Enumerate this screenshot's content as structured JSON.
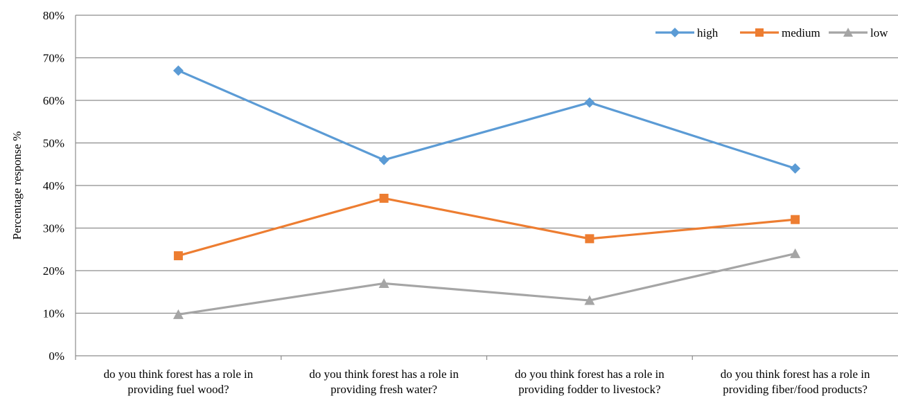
{
  "chart_data": {
    "type": "line",
    "title": "",
    "xlabel": "",
    "ylabel": "Percentage response %",
    "ylim": [
      0,
      80
    ],
    "yticks": [
      "0%",
      "10%",
      "20%",
      "30%",
      "40%",
      "50%",
      "60%",
      "70%",
      "80%"
    ],
    "grid": true,
    "legend_position": "top-right",
    "categories": [
      [
        "do you think forest has a role in",
        "providing fuel wood?"
      ],
      [
        "do you think forest has a role in",
        "providing fresh water?"
      ],
      [
        "do you think forest has a role in",
        "providing fodder to livestock?"
      ],
      [
        "do you think forest has a role in",
        "providing fiber/food products?"
      ]
    ],
    "series": [
      {
        "name": "high",
        "values": [
          67,
          46,
          59.5,
          44
        ],
        "color": "#5b9bd5",
        "marker": "diamond"
      },
      {
        "name": "medium",
        "values": [
          23.5,
          37,
          27.5,
          32
        ],
        "color": "#ed7d31",
        "marker": "square"
      },
      {
        "name": "low",
        "values": [
          9.7,
          17,
          13,
          24
        ],
        "color": "#a5a5a5",
        "marker": "triangle"
      }
    ]
  }
}
